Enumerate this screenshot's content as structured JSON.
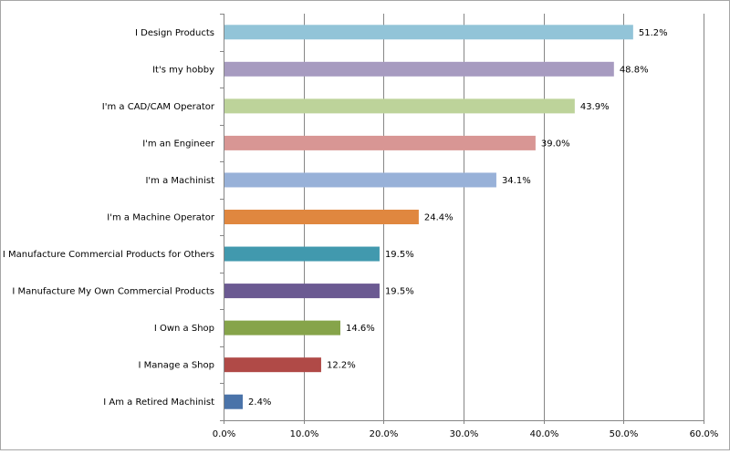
{
  "chart_data": {
    "type": "bar",
    "orientation": "horizontal",
    "title": "",
    "xlabel": "",
    "ylabel": "",
    "xlim": [
      0,
      60
    ],
    "x_ticks": [
      0,
      10,
      20,
      30,
      40,
      50,
      60
    ],
    "x_tick_labels": [
      "0.0%",
      "10.0%",
      "20.0%",
      "30.0%",
      "40.0%",
      "50.0%",
      "60.0%"
    ],
    "grid": "vertical",
    "legend": "none",
    "categories": [
      "I Design Products",
      "It's my hobby",
      "I'm a CAD/CAM Operator",
      "I'm an Engineer",
      "I'm a Machinist",
      "I'm a Machine Operator",
      "I Manufacture Commercial Products for Others",
      "I Manufacture My Own Commercial Products",
      "I Own a Shop",
      "I Manage a Shop",
      "I Am a Retired Machinist"
    ],
    "values": [
      51.2,
      48.8,
      43.9,
      39.0,
      34.1,
      24.4,
      19.5,
      19.5,
      14.6,
      12.2,
      2.4
    ],
    "value_labels": [
      "51.2%",
      "48.8%",
      "43.9%",
      "39.0%",
      "34.1%",
      "24.4%",
      "19.5%",
      "19.5%",
      "14.6%",
      "12.2%",
      "2.4%"
    ],
    "colors": [
      "#92c4d8",
      "#a79bc0",
      "#bdd39a",
      "#d89694",
      "#98b1d8",
      "#e0873f",
      "#4199ae",
      "#6b5a92",
      "#86a44a",
      "#b04a47",
      "#4a73a9"
    ]
  }
}
